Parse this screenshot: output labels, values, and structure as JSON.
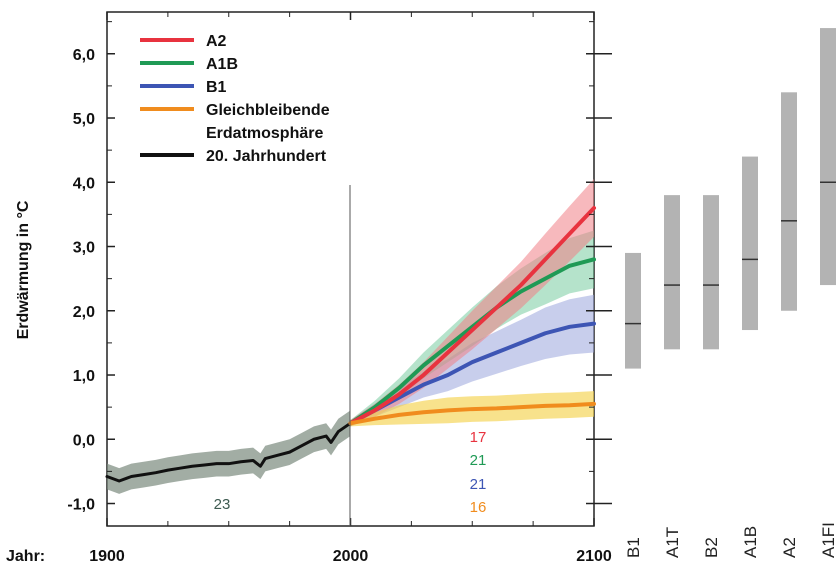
{
  "colors": {
    "A2": "#e8333f",
    "A1B": "#1f9a55",
    "B1": "#3d55b4",
    "const": "#f08c1e",
    "hist": "#111111",
    "bar": "#b3b3b3"
  },
  "chart_data": [
    {
      "type": "line",
      "title": "",
      "xlabel": "Jahr:",
      "ylabel": "Erdwärmung in °C",
      "xlim": [
        1900,
        2100
      ],
      "ylim": [
        -1.35,
        6.65
      ],
      "x_ticks": [
        "1900",
        "2000",
        "2100"
      ],
      "y_ticks": [
        "-1,0",
        "0,0",
        "1,0",
        "2,0",
        "3,0",
        "4,0",
        "5,0",
        "6,0"
      ],
      "y_tick_values": [
        -1,
        0,
        1,
        2,
        3,
        4,
        5,
        6
      ],
      "legend": {
        "placement": "top-left",
        "entries": [
          {
            "label": "A2",
            "series": "A2"
          },
          {
            "label": "A1B",
            "series": "A1B"
          },
          {
            "label": "B1",
            "series": "B1"
          },
          {
            "label": "Gleichbleibende",
            "series": "const"
          },
          {
            "label": "Erdatmosphäre",
            "series": ""
          },
          {
            "label": "20. Jahrhundert",
            "series": "hist"
          }
        ]
      },
      "series": [
        {
          "key": "hist",
          "x": [
            1900,
            1905,
            1910,
            1915,
            1920,
            1925,
            1930,
            1935,
            1940,
            1945,
            1950,
            1955,
            1960,
            1963,
            1965,
            1970,
            1975,
            1980,
            1985,
            1990,
            1992,
            1995,
            2000
          ],
          "y": [
            -0.58,
            -0.65,
            -0.58,
            -0.55,
            -0.52,
            -0.48,
            -0.45,
            -0.42,
            -0.4,
            -0.38,
            -0.38,
            -0.35,
            -0.33,
            -0.42,
            -0.3,
            -0.25,
            -0.2,
            -0.1,
            0.0,
            0.05,
            -0.05,
            0.12,
            0.25
          ],
          "spread": 0.2
        },
        {
          "key": "A2",
          "x": [
            2000,
            2010,
            2020,
            2030,
            2040,
            2050,
            2060,
            2070,
            2080,
            2090,
            2100
          ],
          "y": [
            0.25,
            0.45,
            0.7,
            1.0,
            1.35,
            1.7,
            2.05,
            2.4,
            2.8,
            3.2,
            3.6
          ],
          "spread": [
            0.05,
            0.1,
            0.15,
            0.2,
            0.25,
            0.3,
            0.33,
            0.36,
            0.4,
            0.43,
            0.45
          ]
        },
        {
          "key": "A1B",
          "x": [
            2000,
            2010,
            2020,
            2030,
            2040,
            2050,
            2060,
            2070,
            2080,
            2090,
            2100
          ],
          "y": [
            0.25,
            0.5,
            0.8,
            1.15,
            1.45,
            1.75,
            2.05,
            2.3,
            2.5,
            2.7,
            2.8
          ],
          "spread": [
            0.05,
            0.1,
            0.15,
            0.2,
            0.25,
            0.3,
            0.33,
            0.36,
            0.4,
            0.43,
            0.45
          ]
        },
        {
          "key": "B1",
          "x": [
            2000,
            2010,
            2020,
            2030,
            2040,
            2050,
            2060,
            2070,
            2080,
            2090,
            2100
          ],
          "y": [
            0.25,
            0.45,
            0.65,
            0.85,
            1.0,
            1.2,
            1.35,
            1.5,
            1.65,
            1.75,
            1.8
          ],
          "spread": [
            0.05,
            0.1,
            0.15,
            0.2,
            0.25,
            0.3,
            0.33,
            0.36,
            0.4,
            0.43,
            0.45
          ]
        },
        {
          "key": "const",
          "x": [
            2000,
            2010,
            2020,
            2030,
            2040,
            2050,
            2060,
            2070,
            2080,
            2090,
            2100
          ],
          "y": [
            0.25,
            0.32,
            0.38,
            0.42,
            0.45,
            0.47,
            0.48,
            0.5,
            0.52,
            0.53,
            0.55
          ],
          "spread": [
            0.05,
            0.1,
            0.15,
            0.18,
            0.2,
            0.2,
            0.2,
            0.2,
            0.2,
            0.2,
            0.2
          ]
        }
      ],
      "counts": [
        {
          "value": "23",
          "key": "hist"
        },
        {
          "value": "17",
          "key": "A2"
        },
        {
          "value": "21",
          "key": "A1B"
        },
        {
          "value": "21",
          "key": "B1"
        },
        {
          "value": "16",
          "key": "const"
        }
      ]
    },
    {
      "type": "bar",
      "title": "",
      "categories": [
        "B1",
        "A1T",
        "B2",
        "A1B",
        "A2",
        "A1FI"
      ],
      "ranges": [
        [
          1.1,
          2.9
        ],
        [
          1.4,
          3.8
        ],
        [
          1.4,
          3.8
        ],
        [
          1.7,
          4.4
        ],
        [
          2.0,
          5.4
        ],
        [
          2.4,
          6.4
        ]
      ],
      "best_estimates": [
        1.8,
        2.4,
        2.4,
        2.8,
        3.4,
        4.0
      ]
    }
  ]
}
